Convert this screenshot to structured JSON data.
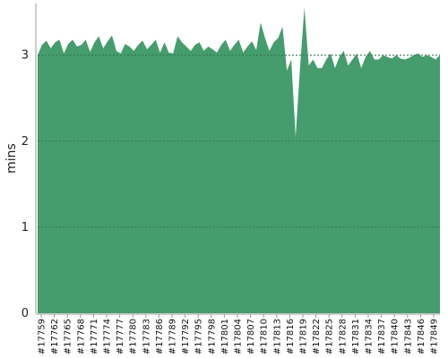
{
  "chart_data": {
    "type": "area",
    "title": "",
    "xlabel": "",
    "ylabel": "mins",
    "ylim": [
      0,
      3.6
    ],
    "y_ticks": [
      0,
      1,
      2,
      3
    ],
    "grid": true,
    "legend": "none",
    "fill_color": "#459c6c",
    "x_tick_labels": [
      "#17759",
      "#17762",
      "#17765",
      "#17768",
      "#17771",
      "#17774",
      "#17777",
      "#17780",
      "#17783",
      "#17786",
      "#17789",
      "#17792",
      "#17795",
      "#17798",
      "#17801",
      "#17804",
      "#17807",
      "#17810",
      "#17813",
      "#17816",
      "#17819",
      "#17822",
      "#17825",
      "#17828",
      "#17831",
      "#17834",
      "#17837",
      "#17840",
      "#17843",
      "#17846",
      "#17849"
    ],
    "series": [
      {
        "values": [
          3.0,
          3.12,
          3.17,
          3.08,
          3.15,
          3.18,
          3.02,
          3.13,
          3.18,
          3.1,
          3.12,
          3.18,
          3.04,
          3.15,
          3.22,
          3.08,
          3.16,
          3.23,
          3.05,
          3.02,
          3.13,
          3.1,
          3.05,
          3.12,
          3.17,
          3.07,
          3.12,
          3.18,
          3.03,
          3.15,
          3.03,
          3.02,
          3.22,
          3.15,
          3.1,
          3.05,
          3.12,
          3.15,
          3.05,
          3.1,
          3.07,
          3.03,
          3.12,
          3.18,
          3.05,
          3.12,
          3.18,
          3.03,
          3.1,
          3.16,
          3.06,
          3.38,
          3.2,
          3.05,
          3.15,
          3.2,
          3.33,
          2.82,
          2.95,
          2.05,
          2.85,
          3.55,
          2.88,
          2.95,
          2.85,
          2.85,
          2.95,
          3.02,
          2.85,
          2.98,
          3.05,
          2.88,
          2.95,
          3.02,
          2.85,
          2.98,
          3.05,
          2.95,
          2.95,
          3.0,
          2.98,
          2.96,
          3.0,
          2.96,
          2.95,
          2.97,
          3.0,
          3.02,
          2.98,
          3.0,
          2.98,
          2.95,
          3.0
        ]
      }
    ]
  }
}
